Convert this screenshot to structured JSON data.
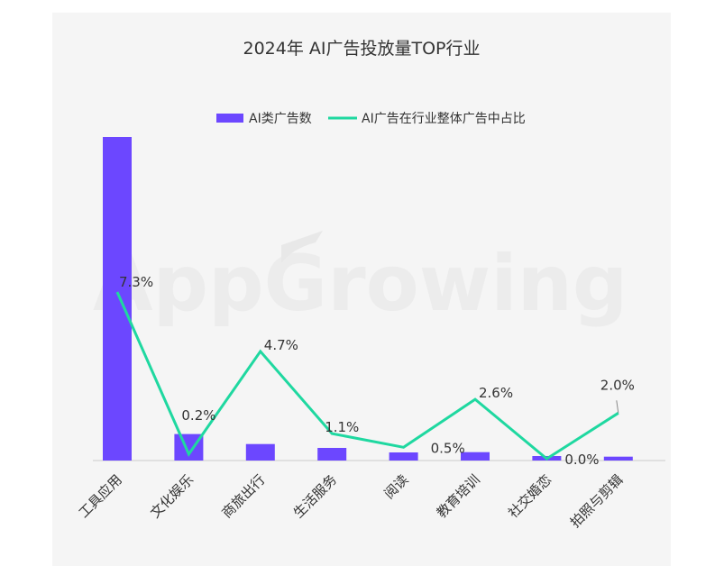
{
  "chart_data": {
    "type": "bar",
    "title": "2024年 AI广告投放量TOP行业",
    "categories": [
      "工具应用",
      "文化娱乐",
      "商旅出行",
      "生活服务",
      "阅读",
      "教育培训",
      "社交婚恋",
      "拍照与剪辑"
    ],
    "series": [
      {
        "name": "AI类广告数",
        "type": "bar",
        "color": "#6c47ff",
        "values": [
          100,
          8.2,
          5.1,
          3.9,
          2.5,
          2.6,
          1.4,
          1.2
        ]
      },
      {
        "name": "AI广告在行业整体广告中占比",
        "type": "line",
        "color": "#1fd8a0",
        "values": [
          7.3,
          0.2,
          4.7,
          1.1,
          0.5,
          2.6,
          0.0,
          2.0
        ],
        "labels": [
          "7.3%",
          "0.2%",
          "4.7%",
          "1.1%",
          "0.5%",
          "2.6%",
          "0.0%",
          "2.0%"
        ]
      }
    ],
    "legend_position": "top-right",
    "grid": false,
    "y_axis_visible": false,
    "watermark": "AppGrowing"
  }
}
